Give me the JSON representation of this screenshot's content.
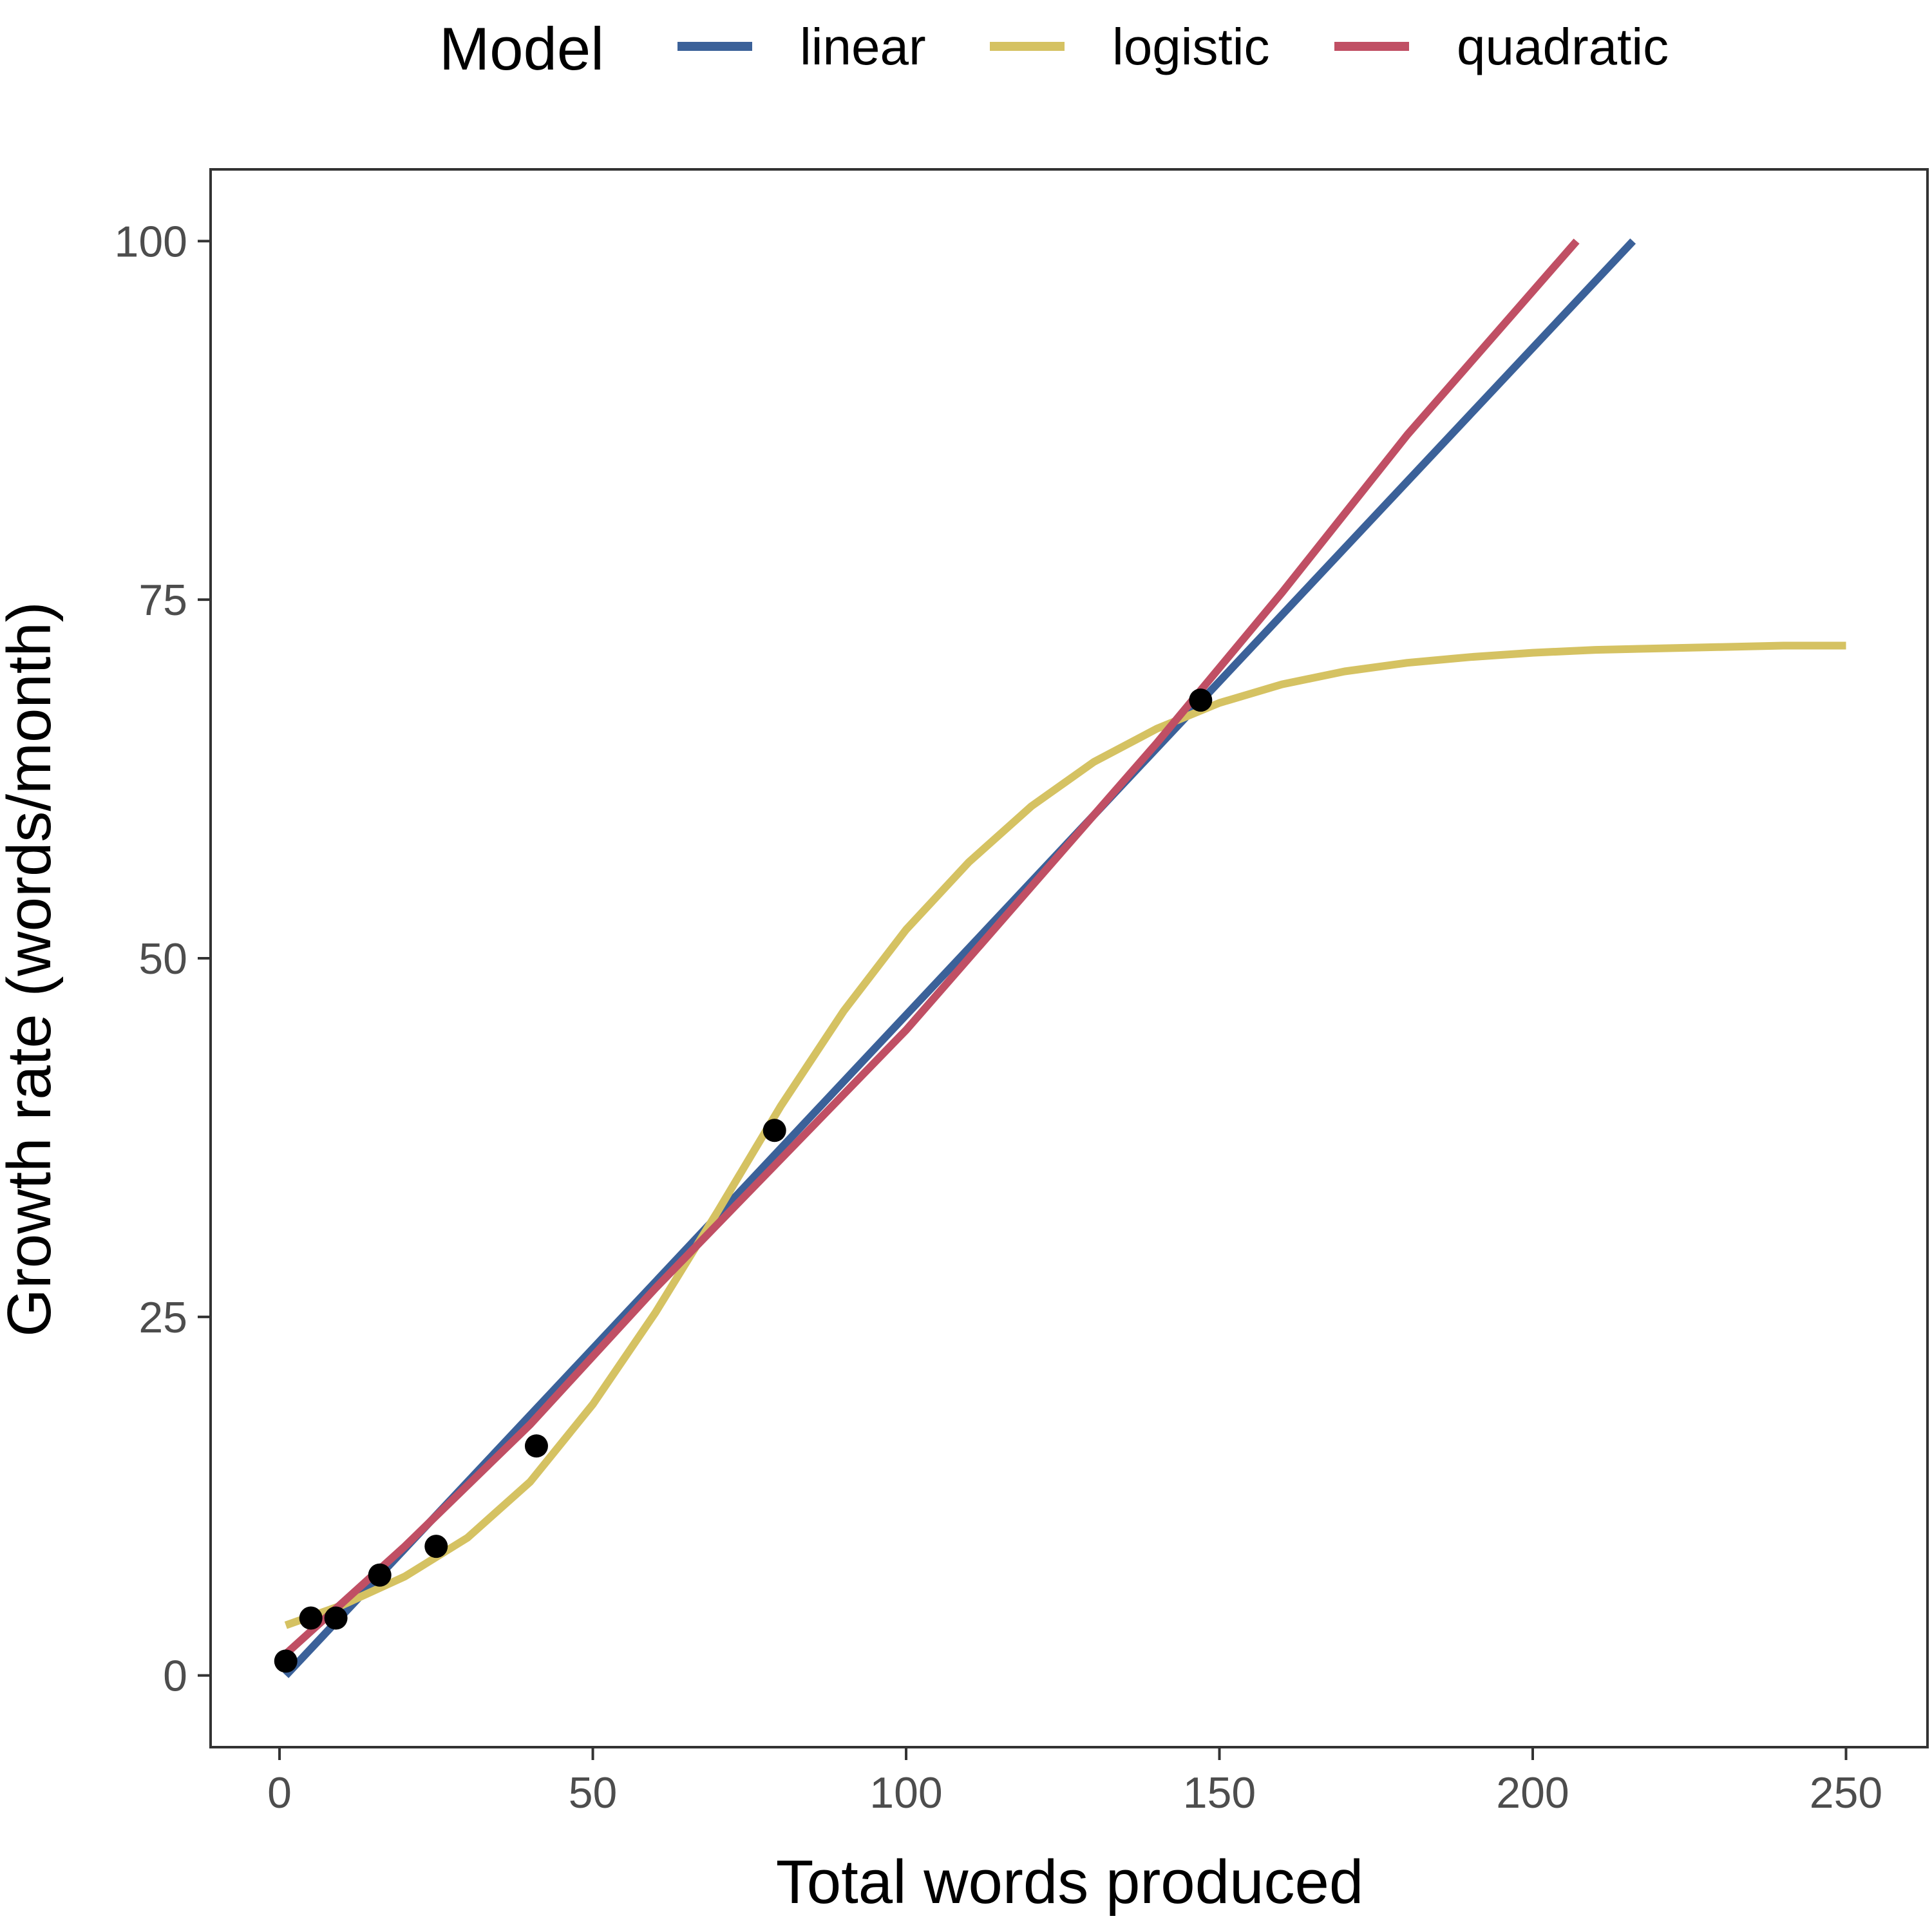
{
  "chart_data": {
    "type": "line",
    "title": "",
    "xlabel": "Total words produced",
    "ylabel": "Growth rate (words/month)",
    "xlim": [
      -11,
      263
    ],
    "ylim": [
      -5,
      105
    ],
    "x_ticks": [
      0,
      50,
      100,
      150,
      200,
      250
    ],
    "y_ticks": [
      0,
      25,
      50,
      75,
      100
    ],
    "grid": false,
    "legend": {
      "title": "Model",
      "position": "top",
      "entries": [
        {
          "label": "linear",
          "color": "#3B6199"
        },
        {
          "label": "logistic",
          "color": "#D5C262"
        },
        {
          "label": "quadratic",
          "color": "#C04F64"
        }
      ]
    },
    "points": {
      "color": "#000000",
      "x": [
        1,
        5,
        9,
        16,
        25,
        41,
        79,
        147
      ],
      "y": [
        1,
        4,
        4,
        7,
        9,
        16,
        38,
        68
      ]
    },
    "series": [
      {
        "name": "linear",
        "color": "#3B6199",
        "x": [
          1,
          216
        ],
        "y": [
          0,
          100
        ]
      },
      {
        "name": "logistic",
        "color": "#D5C262",
        "x": [
          1,
          10,
          20,
          30,
          40,
          50,
          60,
          70,
          80,
          90,
          100,
          110,
          120,
          130,
          140,
          150,
          160,
          170,
          180,
          190,
          200,
          210,
          220,
          230,
          240,
          250
        ],
        "y": [
          3.5,
          4.9,
          6.9,
          9.6,
          13.5,
          18.9,
          25.3,
          32.4,
          39.7,
          46.3,
          52.0,
          56.7,
          60.6,
          63.7,
          66.0,
          67.8,
          69.1,
          70.0,
          70.6,
          71.0,
          71.3,
          71.5,
          71.6,
          71.7,
          71.8,
          71.8
        ]
      },
      {
        "name": "quadratic",
        "color": "#C04F64",
        "x": [
          1,
          20,
          40,
          60,
          80,
          100,
          120,
          140,
          160,
          180,
          207
        ],
        "y": [
          1.5,
          9.0,
          17.5,
          27.0,
          36.0,
          45.0,
          55.0,
          65.0,
          75.5,
          86.5,
          100
        ]
      }
    ]
  }
}
